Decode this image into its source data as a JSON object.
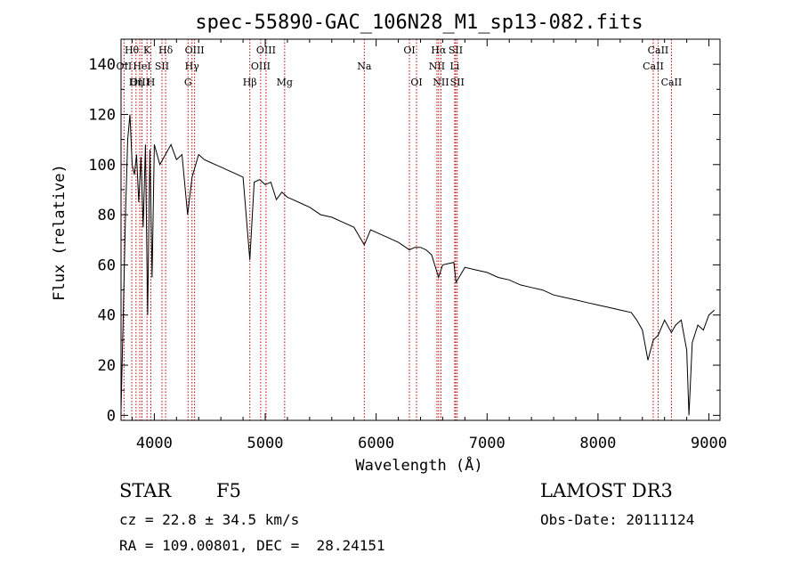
{
  "chart_data": {
    "type": "line",
    "title": "spec-55890-GAC_106N28_M1_sp13-082.fits",
    "xlabel": "Wavelength (Å)",
    "ylabel": "Flux (relative)",
    "xlim": [
      3700,
      9100
    ],
    "ylim": [
      -2,
      150
    ],
    "x_ticks": [
      4000,
      5000,
      6000,
      7000,
      8000,
      9000
    ],
    "y_ticks": [
      0,
      20,
      40,
      60,
      80,
      100,
      120,
      140
    ],
    "grid": false,
    "series": [
      {
        "name": "flux",
        "x": [
          3700,
          3720,
          3740,
          3760,
          3780,
          3800,
          3820,
          3840,
          3860,
          3880,
          3900,
          3920,
          3940,
          3960,
          3980,
          4000,
          4050,
          4100,
          4150,
          4200,
          4250,
          4300,
          4340,
          4400,
          4450,
          4500,
          4550,
          4600,
          4650,
          4700,
          4750,
          4800,
          4861,
          4900,
          4950,
          5000,
          5050,
          5100,
          5150,
          5200,
          5250,
          5300,
          5400,
          5500,
          5600,
          5700,
          5800,
          5893,
          5950,
          6000,
          6100,
          6200,
          6300,
          6350,
          6400,
          6450,
          6500,
          6563,
          6600,
          6700,
          6720,
          6800,
          6900,
          7000,
          7100,
          7200,
          7300,
          7400,
          7500,
          7600,
          7700,
          7800,
          7900,
          8000,
          8100,
          8200,
          8300,
          8350,
          8400,
          8450,
          8498,
          8542,
          8600,
          8662,
          8700,
          8750,
          8800,
          8820,
          8850,
          8900,
          8950,
          9000,
          9050
        ],
        "values": [
          2,
          40,
          80,
          110,
          120,
          100,
          96,
          104,
          85,
          103,
          75,
          108,
          40,
          106,
          55,
          108,
          100,
          104,
          108,
          102,
          104,
          80,
          95,
          104,
          102,
          101,
          100,
          99,
          98,
          97,
          96,
          95,
          62,
          93,
          94,
          92,
          93,
          86,
          89,
          87,
          86,
          85,
          83,
          80,
          79,
          77,
          75,
          68,
          74,
          73,
          71,
          69,
          66,
          67,
          67,
          66,
          64,
          55,
          60,
          61,
          53,
          59,
          58,
          57,
          55,
          54,
          52,
          51,
          50,
          48,
          47,
          46,
          45,
          44,
          43,
          42,
          41,
          38,
          34,
          22,
          30,
          32,
          38,
          33,
          36,
          38,
          26,
          0,
          29,
          36,
          34,
          40,
          42
        ]
      }
    ],
    "spectral_lines": [
      {
        "label": "Hθ",
        "x": 3797,
        "row": 1
      },
      {
        "label": "K",
        "x": 3934,
        "row": 1
      },
      {
        "label": "Hδ",
        "x": 4102,
        "row": 1
      },
      {
        "label": "OII",
        "x": 3727,
        "row": 2
      },
      {
        "label": "HeI",
        "x": 3889,
        "row": 2
      },
      {
        "label": "SII",
        "x": 4069,
        "row": 2
      },
      {
        "label": "OIII",
        "x": 3869,
        "row": 3
      },
      {
        "label": "Hη",
        "x": 3835,
        "row": 3
      },
      {
        "label": "H",
        "x": 3969,
        "row": 3
      },
      {
        "label": "OIII",
        "x": 4363,
        "row": 1
      },
      {
        "label": "Hγ",
        "x": 4340,
        "row": 2
      },
      {
        "label": "G",
        "x": 4304,
        "row": 3
      },
      {
        "label": "OIII",
        "x": 5007,
        "row": 1
      },
      {
        "label": "OIII",
        "x": 4959,
        "row": 2
      },
      {
        "label": "Hβ",
        "x": 4861,
        "row": 3
      },
      {
        "label": "Mg",
        "x": 5175,
        "row": 3
      },
      {
        "label": "Na",
        "x": 5893,
        "row": 2
      },
      {
        "label": "OI",
        "x": 6300,
        "row": 1
      },
      {
        "label": "OI",
        "x": 6364,
        "row": 3
      },
      {
        "label": "Hα",
        "x": 6563,
        "row": 1
      },
      {
        "label": "NII",
        "x": 6548,
        "row": 2
      },
      {
        "label": "NII",
        "x": 6584,
        "row": 3
      },
      {
        "label": "SII",
        "x": 6717,
        "row": 1
      },
      {
        "label": "Li",
        "x": 6708,
        "row": 2
      },
      {
        "label": "SII",
        "x": 6731,
        "row": 3
      },
      {
        "label": "CaII",
        "x": 8542,
        "row": 1
      },
      {
        "label": "CaII",
        "x": 8498,
        "row": 2
      },
      {
        "label": "CaII",
        "x": 8662,
        "row": 3
      }
    ]
  },
  "info": {
    "object_type": "STAR",
    "subclass": "F5",
    "survey": "LAMOST DR3",
    "redshift_line": "cz = 22.8 ± 34.5 km/s",
    "obs_date": "Obs-Date: 20111124",
    "coords": "RA = 109.00801, DEC =  28.24151"
  }
}
